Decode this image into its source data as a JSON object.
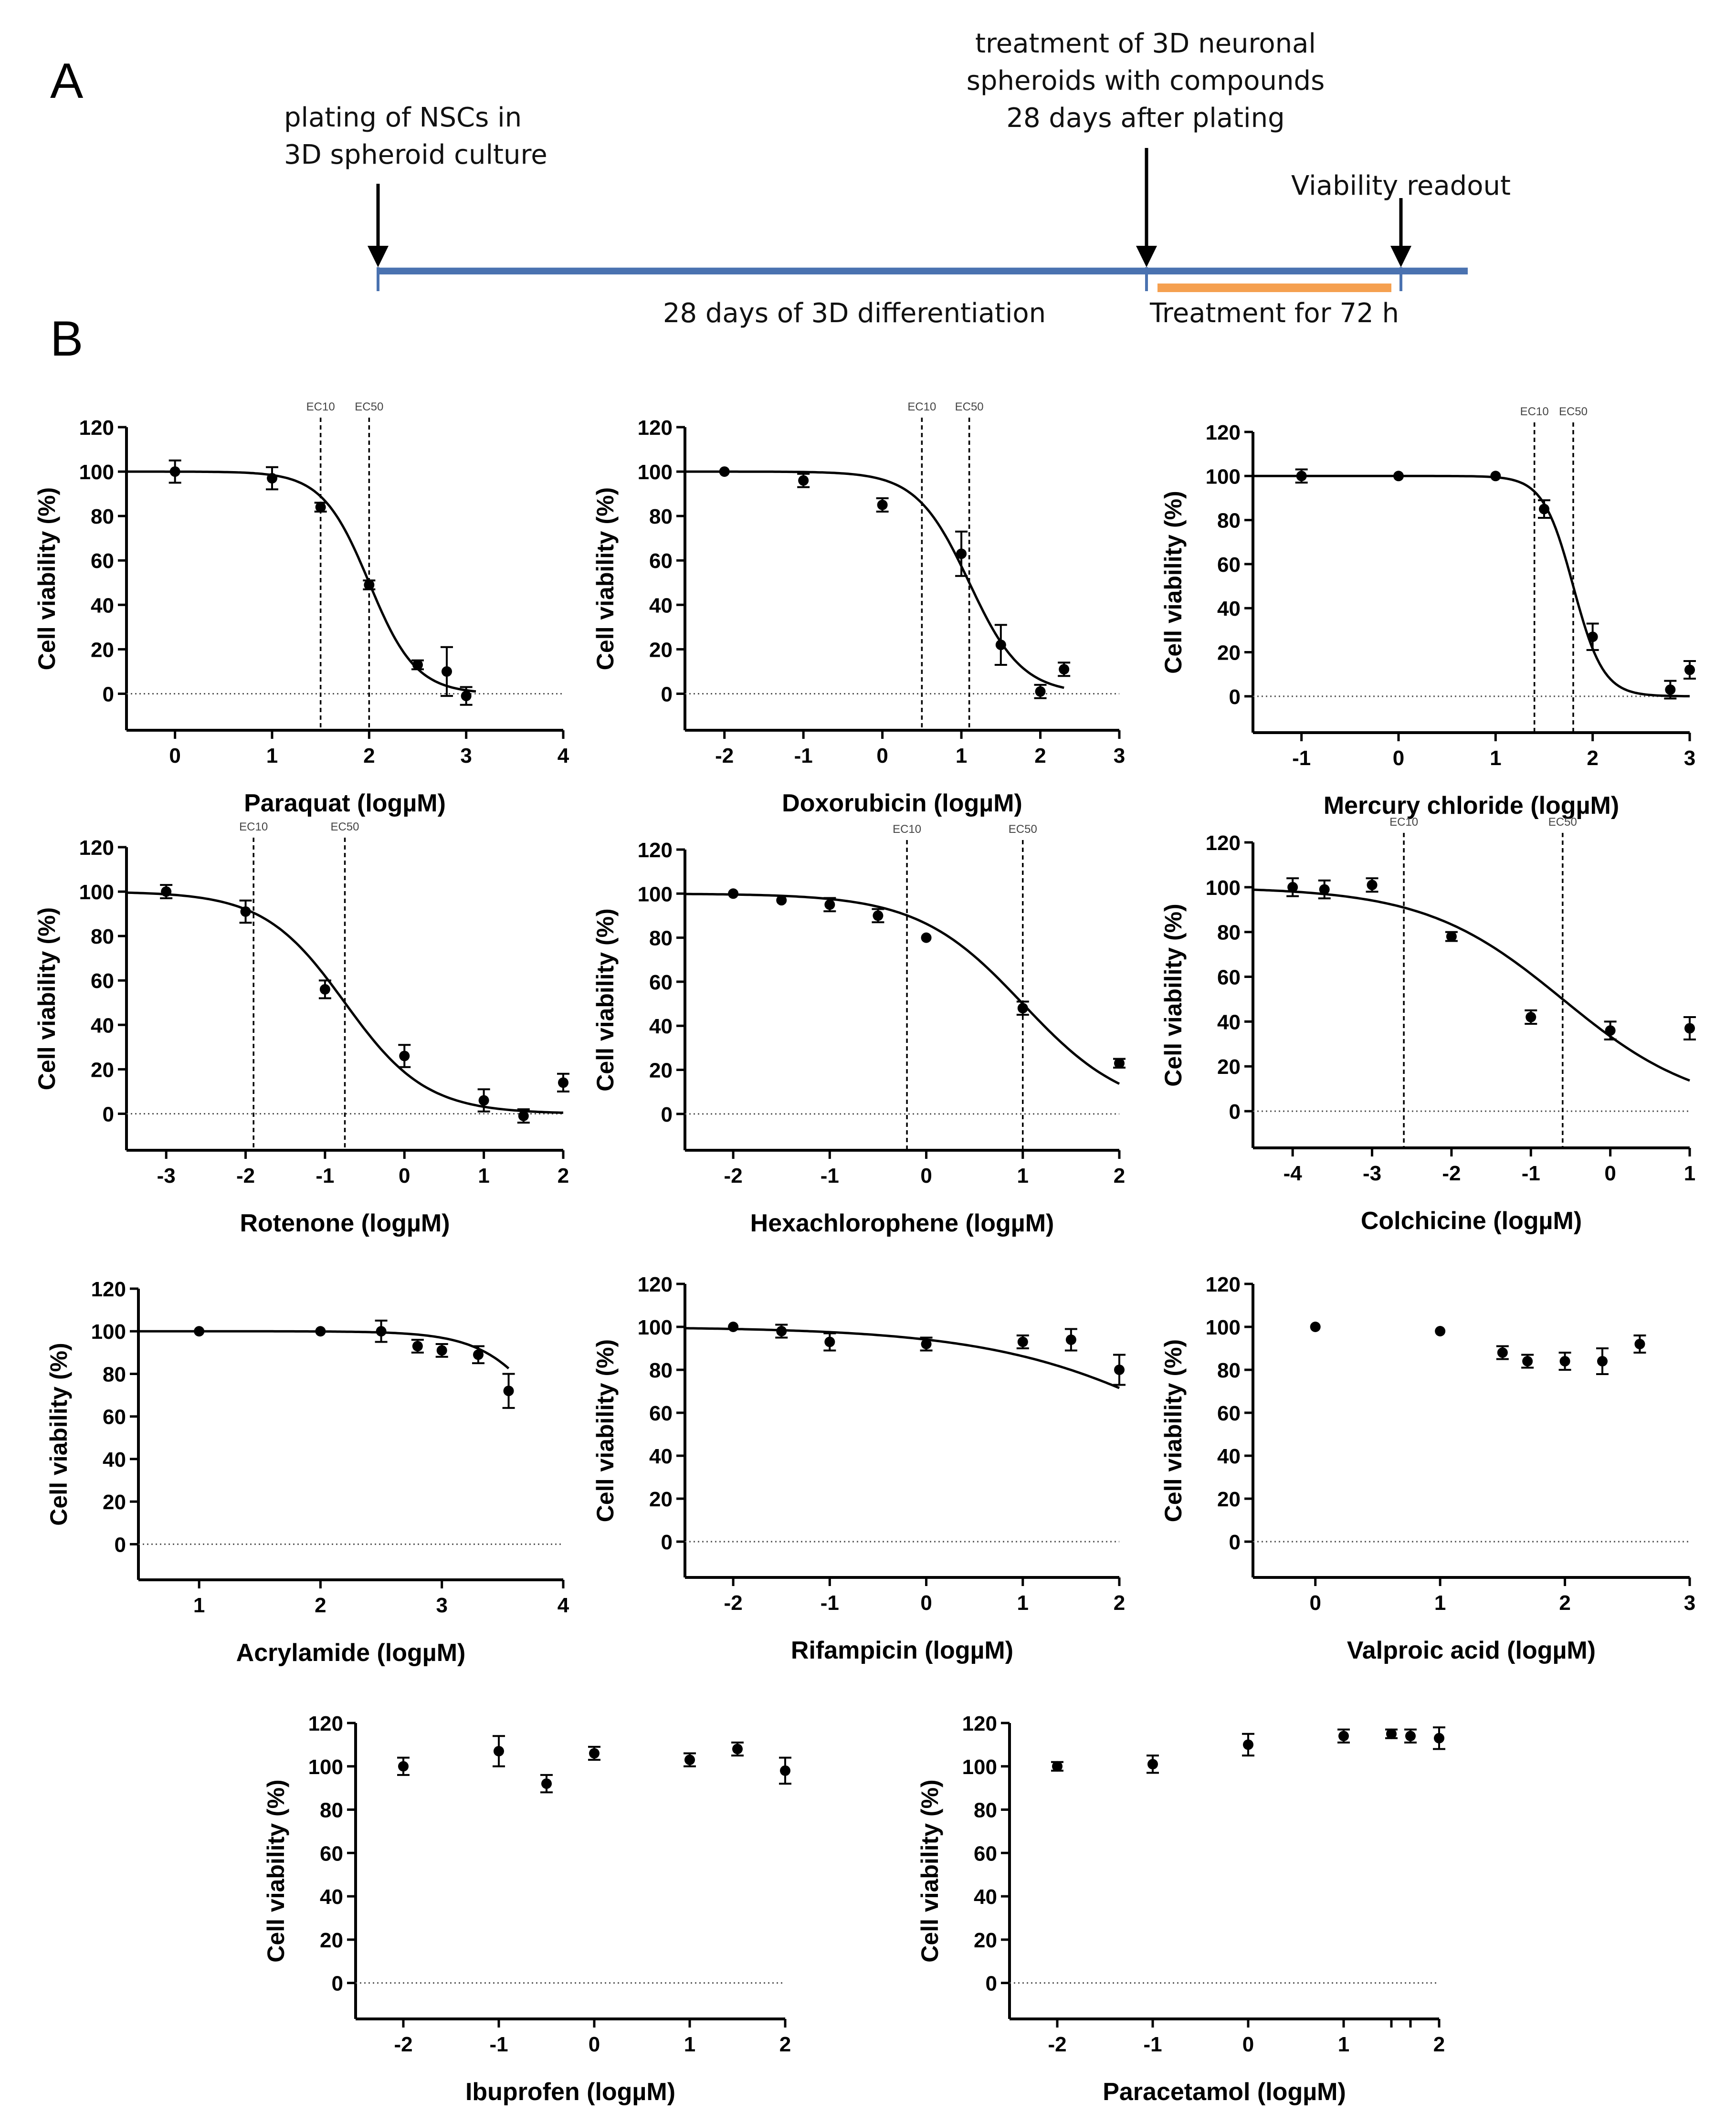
{
  "figure": {
    "panel_a_label": "A",
    "panel_b_label": "B"
  },
  "timeline": {
    "plating_line1": "plating of NSCs in",
    "plating_line2": "3D spheroid culture",
    "treatment_line1": "treatment of 3D neuronal",
    "treatment_line2": "spheroids with compounds",
    "treatment_line3": "28 days after plating",
    "readout": "Viability readout",
    "differentiation": "28 days of 3D differentiation",
    "treatment_duration": "Treatment for 72 h",
    "colors": {
      "timeline": "#4a72b0",
      "treatment": "#f5a050",
      "arrow": "#000000"
    }
  },
  "chart_data": [
    {
      "type": "scatter",
      "xlabel": "Paraquat (logµM)",
      "ylabel": "Cell viability (%)",
      "xlim": [
        -0.5,
        4
      ],
      "ylim": [
        -10,
        120
      ],
      "xticks": [
        0,
        1,
        2,
        3,
        4
      ],
      "yticks": [
        0,
        20,
        40,
        60,
        80,
        100,
        120
      ],
      "x": [
        0,
        1,
        1.5,
        2,
        2.5,
        2.8,
        3
      ],
      "y": [
        100,
        97,
        84,
        49,
        13,
        10,
        -1
      ],
      "err": [
        5,
        5,
        2,
        2,
        2,
        11,
        4
      ],
      "fit": {
        "bottom": 0,
        "top": 100,
        "logEC50": 2.0,
        "hill": 1.8,
        "range": [
          -0.5,
          3.1
        ]
      },
      "ec10_label": "EC10",
      "ec50_label": "EC50",
      "ec10": 1.5,
      "ec50": 2.0
    },
    {
      "type": "scatter",
      "xlabel": "Doxorubicin (logµM)",
      "ylabel": "Cell viability (%)",
      "xlim": [
        -2.5,
        3
      ],
      "ylim": [
        -10,
        120
      ],
      "xticks": [
        -2,
        -1,
        0,
        1,
        2,
        3
      ],
      "yticks": [
        0,
        20,
        40,
        60,
        80,
        100,
        120
      ],
      "x": [
        -2,
        -1,
        0,
        1,
        1.5,
        2,
        2.3
      ],
      "y": [
        100,
        96,
        85,
        63,
        22,
        1,
        11
      ],
      "err": [
        1,
        3,
        3,
        10,
        9,
        3,
        3
      ],
      "fit": {
        "bottom": 0,
        "top": 100,
        "logEC50": 1.1,
        "hill": 1.3,
        "range": [
          -2.5,
          2.3
        ]
      },
      "ec10_label": "EC10",
      "ec50_label": "EC50",
      "ec10": 0.5,
      "ec50": 1.1
    },
    {
      "type": "scatter",
      "xlabel": "Mercury chloride (logµM)",
      "ylabel": "Cell viability (%)",
      "xlim": [
        -1.5,
        3
      ],
      "ylim": [
        -10,
        120
      ],
      "xticks": [
        -1,
        0,
        1,
        2,
        3
      ],
      "yticks": [
        0,
        20,
        40,
        60,
        80,
        100,
        120
      ],
      "x": [
        -1,
        0,
        1,
        1.5,
        2,
        2.8,
        3
      ],
      "y": [
        100,
        100,
        100,
        85,
        27,
        3,
        12
      ],
      "err": [
        3,
        1,
        1,
        4,
        6,
        4,
        4
      ],
      "fit": {
        "bottom": 0,
        "top": 100,
        "logEC50": 1.8,
        "hill": 2.8,
        "range": [
          -1.5,
          3
        ]
      },
      "ec10_label": "EC10",
      "ec50_label": "EC50",
      "ec10": 1.4,
      "ec50": 1.8
    },
    {
      "type": "scatter",
      "xlabel": "Rotenone (logµM)",
      "ylabel": "Cell viability (%)",
      "xlim": [
        -3.5,
        2
      ],
      "ylim": [
        -10,
        120
      ],
      "xticks": [
        -3,
        -2,
        -1,
        0,
        1,
        2
      ],
      "yticks": [
        0,
        20,
        40,
        60,
        80,
        100,
        120
      ],
      "x": [
        -3,
        -2,
        -1,
        0,
        1,
        1.5,
        2
      ],
      "y": [
        100,
        91,
        56,
        26,
        6,
        -1,
        14
      ],
      "err": [
        3,
        5,
        4,
        5,
        5,
        3,
        4
      ],
      "fit": {
        "bottom": 0,
        "top": 100,
        "logEC50": -0.75,
        "hill": 0.85,
        "range": [
          -3.5,
          2
        ]
      },
      "ec10_label": "EC10",
      "ec50_label": "EC50",
      "ec10": -1.9,
      "ec50": -0.75
    },
    {
      "type": "scatter",
      "xlabel": "Hexachlorophene (logµM)",
      "ylabel": "Cell viability (%)",
      "xlim": [
        -2.5,
        2
      ],
      "ylim": [
        -10,
        120
      ],
      "xticks": [
        -2,
        -1,
        0,
        1,
        2
      ],
      "yticks": [
        0,
        20,
        40,
        60,
        80,
        100,
        120
      ],
      "x": [
        -2,
        -1.5,
        -1,
        -0.5,
        0,
        1,
        2
      ],
      "y": [
        100,
        97,
        95,
        90,
        80,
        48,
        23
      ],
      "err": [
        1,
        1,
        3,
        3,
        1,
        3,
        2
      ],
      "fit": {
        "bottom": 0,
        "top": 100,
        "logEC50": 1.0,
        "hill": 0.8,
        "range": [
          -2.5,
          2
        ]
      },
      "ec10_label": "EC10",
      "ec50_label": "EC50",
      "ec10": -0.2,
      "ec50": 1.0
    },
    {
      "type": "scatter",
      "xlabel": "Colchicine (logµM)",
      "ylabel": "Cell viability (%)",
      "xlim": [
        -4.5,
        1
      ],
      "ylim": [
        -10,
        120
      ],
      "xticks": [
        -4,
        -3,
        -2,
        -1,
        0,
        1
      ],
      "yticks": [
        0,
        20,
        40,
        60,
        80,
        100,
        120
      ],
      "x": [
        -4,
        -3.6,
        -3,
        -2,
        -1,
        0,
        1
      ],
      "y": [
        100,
        99,
        101,
        78,
        42,
        36,
        37
      ],
      "err": [
        4,
        4,
        3,
        2,
        3,
        4,
        5
      ],
      "fit": {
        "bottom": 0,
        "top": 100,
        "logEC50": -0.6,
        "hill": 0.5,
        "range": [
          -4.5,
          1
        ]
      },
      "ec10_label": "EC10",
      "ec50_label": "EC50",
      "ec10": -2.6,
      "ec50": -0.6
    },
    {
      "type": "scatter",
      "xlabel": "Acrylamide (logµM)",
      "ylabel": "Cell viability (%)",
      "xlim": [
        0.5,
        4
      ],
      "ylim": [
        -10,
        120
      ],
      "xticks": [
        1,
        2,
        3,
        4
      ],
      "yticks": [
        0,
        20,
        40,
        60,
        80,
        100,
        120
      ],
      "x": [
        1,
        2,
        2.5,
        2.8,
        3,
        3.3,
        3.55
      ],
      "y": [
        100,
        100,
        100,
        93,
        91,
        89,
        72
      ],
      "err": [
        1,
        1,
        5,
        3,
        3,
        4,
        8
      ],
      "fit": {
        "bottom": 0,
        "top": 100,
        "logEC50": 4.0,
        "hill": 1.5,
        "range": [
          0.5,
          3.55
        ]
      }
    },
    {
      "type": "scatter",
      "xlabel": "Rifampicin (logµM)",
      "ylabel": "Cell viability (%)",
      "xlim": [
        -2.5,
        2
      ],
      "ylim": [
        -10,
        120
      ],
      "xticks": [
        -2,
        -1,
        0,
        1,
        2
      ],
      "yticks": [
        0,
        20,
        40,
        60,
        80,
        100,
        120
      ],
      "x": [
        -2,
        -1.5,
        -1,
        0,
        1,
        1.5,
        2
      ],
      "y": [
        100,
        98,
        93,
        92,
        93,
        94,
        80
      ],
      "err": [
        1,
        3,
        4,
        3,
        3,
        5,
        7
      ],
      "fit": {
        "bottom": 0,
        "top": 100,
        "logEC50": 3.0,
        "hill": 0.4,
        "range": [
          -2.5,
          2
        ]
      }
    },
    {
      "type": "scatter",
      "xlabel": "Valproic acid (logµM)",
      "ylabel": "Cell viability (%)",
      "xlim": [
        -0.5,
        3
      ],
      "ylim": [
        -10,
        120
      ],
      "xticks": [
        0,
        1,
        2,
        3
      ],
      "yticks": [
        0,
        20,
        40,
        60,
        80,
        100,
        120
      ],
      "x": [
        0,
        1,
        1.5,
        1.7,
        2,
        2.3,
        2.6
      ],
      "y": [
        100,
        98,
        88,
        84,
        84,
        84,
        92
      ],
      "err": [
        1,
        1,
        3,
        3,
        4,
        6,
        4
      ]
    },
    {
      "type": "scatter",
      "xlabel": "Ibuprofen (logµM)",
      "ylabel": "Cell viability (%)",
      "xlim": [
        -2.5,
        2
      ],
      "ylim": [
        -10,
        120
      ],
      "xticks": [
        -2,
        -1,
        0,
        1,
        2
      ],
      "yticks": [
        0,
        20,
        40,
        60,
        80,
        100,
        120
      ],
      "x": [
        -2,
        -1,
        -0.5,
        0,
        1,
        1.5,
        2
      ],
      "y": [
        100,
        107,
        92,
        106,
        103,
        108,
        98
      ],
      "err": [
        4,
        7,
        4,
        3,
        3,
        3,
        6
      ]
    },
    {
      "type": "scatter",
      "xlabel": "Paracetamol (logµM)",
      "ylabel": "Cell viability (%)",
      "xlim": [
        -2.5,
        2
      ],
      "ylim": [
        -10,
        120
      ],
      "xticks": [
        -2,
        -1,
        0,
        1,
        1.5,
        1.7,
        2
      ],
      "tick_labels": [
        "-2",
        "-1",
        "0",
        "1",
        "",
        "",
        "2"
      ],
      "yticks": [
        0,
        20,
        40,
        60,
        80,
        100,
        120
      ],
      "x": [
        -2,
        -1,
        0,
        1,
        1.5,
        1.7,
        2
      ],
      "y": [
        100,
        101,
        110,
        114,
        115,
        114,
        113
      ],
      "err": [
        2,
        4,
        5,
        3,
        2,
        3,
        5
      ]
    }
  ]
}
